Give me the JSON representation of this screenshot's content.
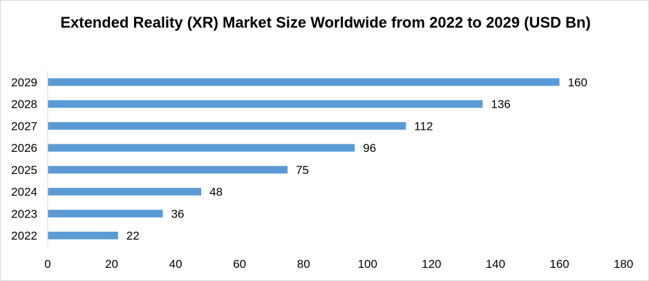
{
  "chart_data": {
    "type": "bar",
    "orientation": "horizontal",
    "title": "Extended Reality (XR) Market Size Worldwide from 2022 to 2029 (USD Bn)",
    "categories": [
      "2022",
      "2023",
      "2024",
      "2025",
      "2026",
      "2027",
      "2028",
      "2029"
    ],
    "values": [
      22,
      36,
      48,
      75,
      96,
      112,
      136,
      160
    ],
    "xlim": [
      0,
      180
    ],
    "x_ticks": [
      0,
      20,
      40,
      60,
      80,
      100,
      120,
      140,
      160,
      180
    ],
    "xlabel": "",
    "ylabel": "",
    "grid": false,
    "legend": "none",
    "bar_color": "#5b9bd5",
    "data_labels": true
  }
}
